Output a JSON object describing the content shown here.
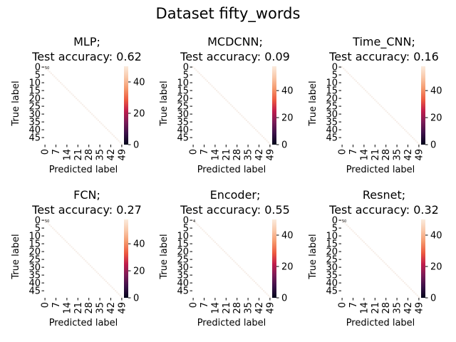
{
  "figure": {
    "title": "Dataset fifty_words"
  },
  "colorbar_gradient": [
    "#03051a",
    "#3b1148",
    "#7a1b57",
    "#c01c4b",
    "#ed5a40",
    "#f5986c",
    "#f9c7a8",
    "#faebdd"
  ],
  "chart_data": [
    {
      "type": "heatmap",
      "model": "MLP;",
      "accuracy_line": "Test accuracy: 0.62",
      "xlabel": "Predicted label",
      "ylabel": "True label",
      "x_ticks": [
        "0",
        "7",
        "14",
        "21",
        "28",
        "35",
        "42",
        "49"
      ],
      "y_ticks": [
        "0",
        "5",
        "10",
        "15",
        "20",
        "25",
        "30",
        "35",
        "40",
        "45"
      ],
      "n_classes": 50,
      "colorbar_range": [
        0,
        50
      ],
      "colorbar_ticks": [
        "0",
        "20",
        "40"
      ],
      "annotation_text": "50"
    },
    {
      "type": "heatmap",
      "model": "MCDCNN;",
      "accuracy_line": "Test accuracy: 0.09",
      "xlabel": "Predicted label",
      "ylabel": "True label",
      "x_ticks": [
        "0",
        "7",
        "14",
        "21",
        "28",
        "35",
        "42",
        "49"
      ],
      "y_ticks": [
        "0",
        "5",
        "10",
        "15",
        "20",
        "25",
        "30",
        "35",
        "40",
        "45"
      ],
      "n_classes": 50,
      "colorbar_range": [
        0,
        58
      ],
      "colorbar_ticks": [
        "0",
        "20",
        "40"
      ],
      "annotation_text": ""
    },
    {
      "type": "heatmap",
      "model": "Time_CNN;",
      "accuracy_line": "Test accuracy: 0.16",
      "xlabel": "Predicted label",
      "ylabel": "True label",
      "x_ticks": [
        "0",
        "7",
        "14",
        "21",
        "28",
        "35",
        "42",
        "49"
      ],
      "y_ticks": [
        "0",
        "5",
        "10",
        "15",
        "20",
        "25",
        "30",
        "35",
        "40",
        "45"
      ],
      "n_classes": 50,
      "colorbar_range": [
        0,
        58
      ],
      "colorbar_ticks": [
        "0",
        "20",
        "40"
      ],
      "annotation_text": ""
    },
    {
      "type": "heatmap",
      "model": "FCN;",
      "accuracy_line": "Test accuracy: 0.27",
      "xlabel": "Predicted label",
      "ylabel": "True label",
      "x_ticks": [
        "0",
        "7",
        "14",
        "21",
        "28",
        "35",
        "42",
        "49"
      ],
      "y_ticks": [
        "0",
        "5",
        "10",
        "15",
        "20",
        "25",
        "30",
        "35",
        "40",
        "45"
      ],
      "n_classes": 50,
      "colorbar_range": [
        0,
        58
      ],
      "colorbar_ticks": [
        "0",
        "20",
        "40"
      ],
      "annotation_text": "50"
    },
    {
      "type": "heatmap",
      "model": "Encoder;",
      "accuracy_line": "Test accuracy: 0.55",
      "xlabel": "Predicted label",
      "ylabel": "True label",
      "x_ticks": [
        "0",
        "7",
        "14",
        "21",
        "28",
        "35",
        "42",
        "49"
      ],
      "y_ticks": [
        "0",
        "5",
        "10",
        "15",
        "20",
        "25",
        "30",
        "35",
        "40",
        "45"
      ],
      "n_classes": 50,
      "colorbar_range": [
        0,
        50
      ],
      "colorbar_ticks": [
        "0",
        "20",
        "40"
      ],
      "annotation_text": "4"
    },
    {
      "type": "heatmap",
      "model": "Resnet;",
      "accuracy_line": "Test accuracy: 0.32",
      "xlabel": "Predicted label",
      "ylabel": "True label",
      "x_ticks": [
        "0",
        "7",
        "14",
        "21",
        "28",
        "35",
        "42",
        "49"
      ],
      "y_ticks": [
        "0",
        "5",
        "10",
        "15",
        "20",
        "25",
        "30",
        "35",
        "40",
        "45"
      ],
      "n_classes": 50,
      "colorbar_range": [
        0,
        50
      ],
      "colorbar_ticks": [
        "0",
        "20",
        "40"
      ],
      "annotation_text": "50"
    }
  ]
}
